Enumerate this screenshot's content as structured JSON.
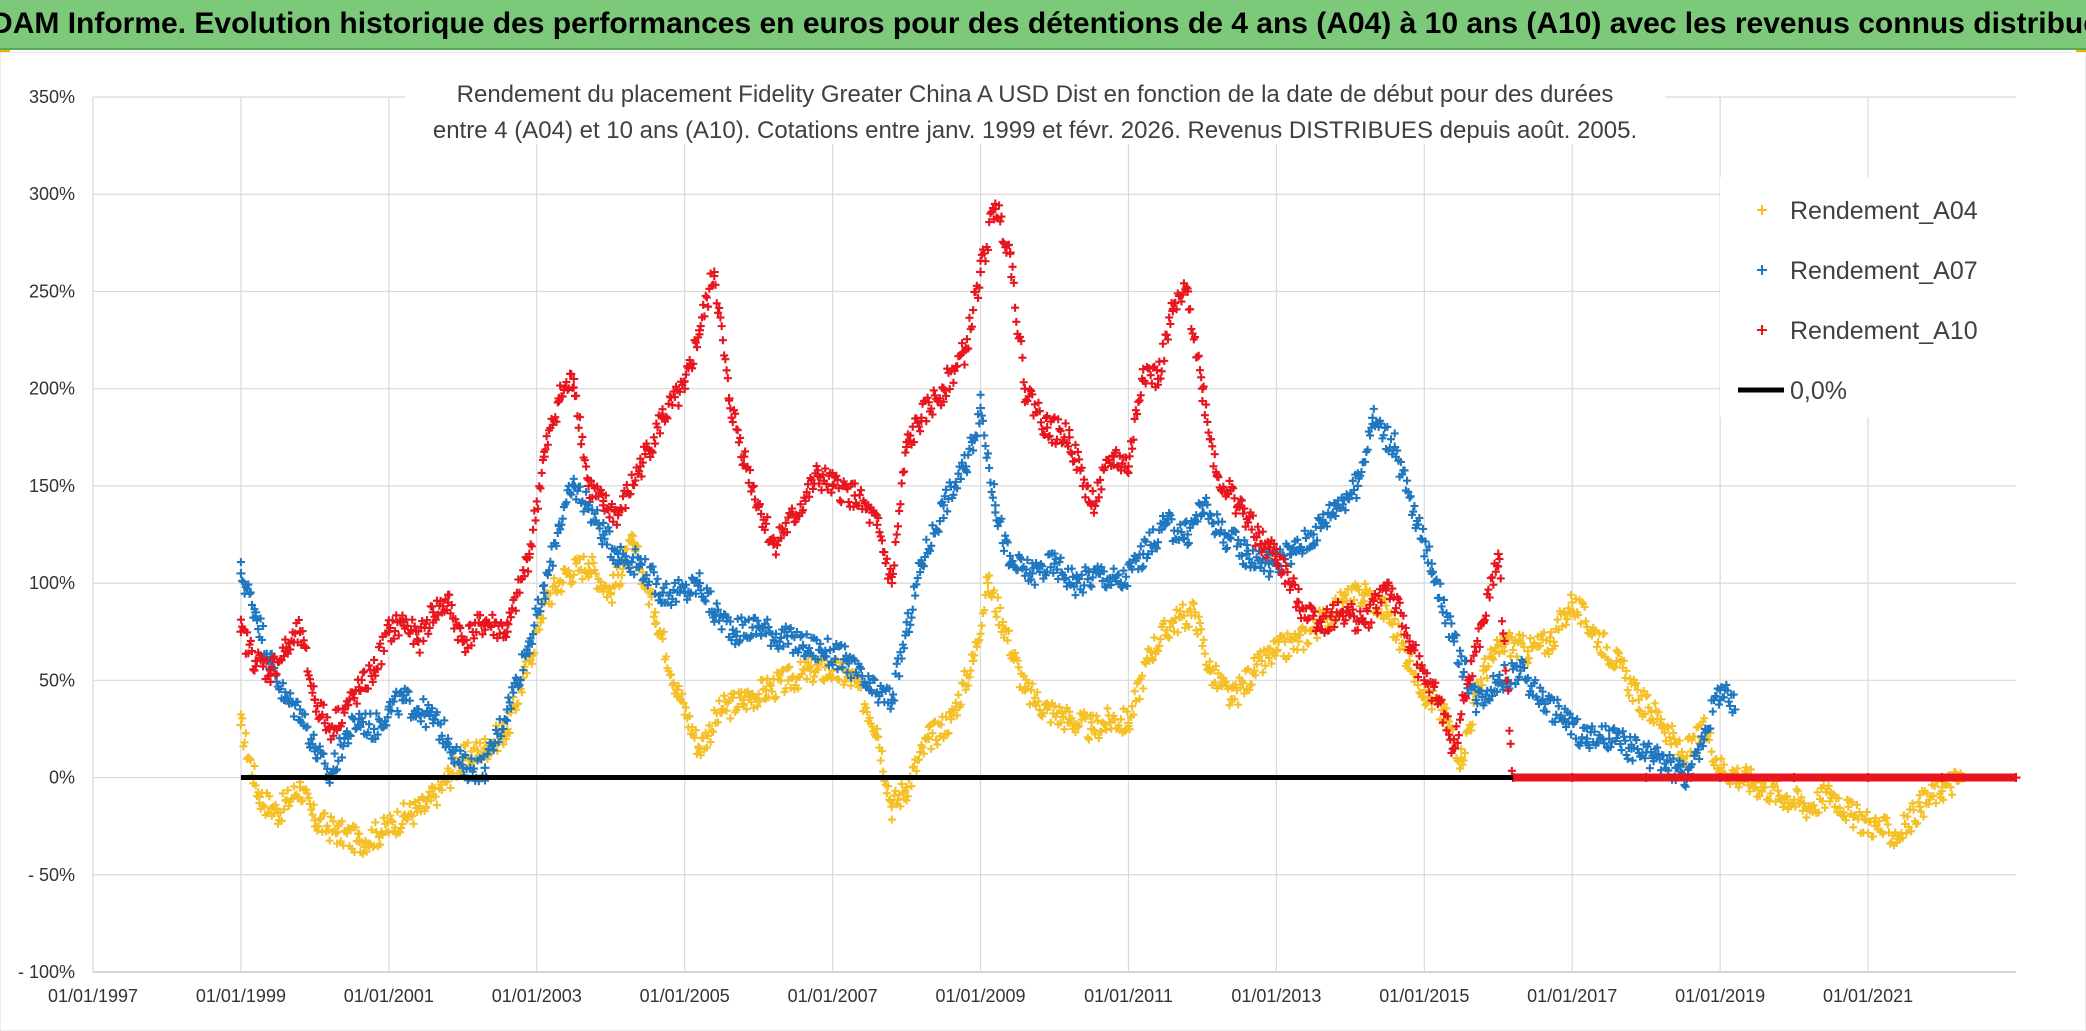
{
  "banner": {
    "title": "ADAM Informe. Evolution historique des performances en euros pour des détentions de 4 ans (A04) à 10 ans (A10) avec les revenus connus distribués"
  },
  "chart_data": {
    "type": "scatter",
    "title_line1": "Rendement du placement Fidelity Greater China A USD Dist en fonction de la date de début pour des durées",
    "title_line2": "entre 4 (A04) et 10 ans (A10). Cotations entre janv. 1999 et févr. 2026. Revenus DISTRIBUES depuis août. 2005.",
    "ylim": [
      -100,
      350
    ],
    "xlim": [
      1997.0,
      2023.0
    ],
    "grid": true,
    "legend_position": "top-right",
    "y_tick_labels": [
      "- 100%",
      "- 50%",
      "0%",
      "50%",
      "100%",
      "150%",
      "200%",
      "250%",
      "300%",
      "350%"
    ],
    "y_tick_values": [
      -100,
      -50,
      0,
      50,
      100,
      150,
      200,
      250,
      300,
      350
    ],
    "x_tick_labels": [
      "01/01/1997",
      "01/01/1999",
      "01/01/2001",
      "01/01/2003",
      "01/01/2005",
      "01/01/2007",
      "01/01/2009",
      "01/01/2011",
      "01/01/2013",
      "01/01/2015",
      "01/01/2017",
      "01/01/2019",
      "01/01/2021"
    ],
    "x_tick_values": [
      1997,
      1999,
      2001,
      2003,
      2005,
      2007,
      2009,
      2011,
      2013,
      2015,
      2017,
      2019,
      2021
    ],
    "series": [
      {
        "name": "Rendement_A04",
        "color": "#f5c026",
        "marker": "plus",
        "points": [
          [
            1999.0,
            27
          ],
          [
            1999.25,
            -10
          ],
          [
            1999.5,
            -18
          ],
          [
            1999.8,
            -5
          ],
          [
            2000.0,
            -22
          ],
          [
            2000.3,
            -28
          ],
          [
            2000.6,
            -33
          ],
          [
            2000.9,
            -28
          ],
          [
            2001.2,
            -20
          ],
          [
            2001.5,
            -15
          ],
          [
            2001.8,
            0
          ],
          [
            2002.0,
            10
          ],
          [
            2002.3,
            15
          ],
          [
            2002.6,
            25
          ],
          [
            2002.9,
            60
          ],
          [
            2003.1,
            90
          ],
          [
            2003.4,
            105
          ],
          [
            2003.7,
            110
          ],
          [
            2004.0,
            95
          ],
          [
            2004.3,
            120
          ],
          [
            2004.6,
            85
          ],
          [
            2004.9,
            45
          ],
          [
            2005.2,
            15
          ],
          [
            2005.5,
            35
          ],
          [
            2005.8,
            40
          ],
          [
            2006.1,
            45
          ],
          [
            2006.4,
            50
          ],
          [
            2006.7,
            55
          ],
          [
            2007.0,
            55
          ],
          [
            2007.3,
            50
          ],
          [
            2007.6,
            25
          ],
          [
            2007.8,
            -15
          ],
          [
            2008.0,
            -5
          ],
          [
            2008.3,
            20
          ],
          [
            2008.6,
            30
          ],
          [
            2008.9,
            60
          ],
          [
            2009.1,
            100
          ],
          [
            2009.3,
            80
          ],
          [
            2009.6,
            45
          ],
          [
            2009.9,
            35
          ],
          [
            2010.2,
            30
          ],
          [
            2010.5,
            25
          ],
          [
            2010.8,
            30
          ],
          [
            2011.0,
            28
          ],
          [
            2011.3,
            65
          ],
          [
            2011.6,
            80
          ],
          [
            2011.9,
            85
          ],
          [
            2012.1,
            55
          ],
          [
            2012.4,
            40
          ],
          [
            2012.7,
            55
          ],
          [
            2013.0,
            65
          ],
          [
            2013.3,
            70
          ],
          [
            2013.6,
            80
          ],
          [
            2013.9,
            90
          ],
          [
            2014.2,
            95
          ],
          [
            2014.5,
            85
          ],
          [
            2014.8,
            60
          ],
          [
            2015.0,
            45
          ],
          [
            2015.3,
            30
          ],
          [
            2015.5,
            10
          ],
          [
            2015.8,
            55
          ],
          [
            2016.1,
            70
          ],
          [
            2016.4,
            65
          ],
          [
            2016.7,
            70
          ],
          [
            2017.0,
            90
          ],
          [
            2017.3,
            75
          ],
          [
            2017.6,
            60
          ],
          [
            2017.9,
            40
          ],
          [
            2018.2,
            30
          ],
          [
            2018.5,
            10
          ],
          [
            2018.8,
            25
          ],
          [
            2019.0,
            5
          ],
          [
            2019.3,
            0
          ],
          [
            2019.6,
            -5
          ],
          [
            2019.9,
            -10
          ],
          [
            2020.2,
            -15
          ],
          [
            2020.5,
            -8
          ],
          [
            2020.8,
            -20
          ],
          [
            2021.1,
            -25
          ],
          [
            2021.4,
            -30
          ],
          [
            2021.7,
            -15
          ],
          [
            2022.0,
            -5
          ],
          [
            2022.3,
            0
          ]
        ]
      },
      {
        "name": "Rendement_A07",
        "color": "#1f77c0",
        "marker": "plus",
        "points": [
          [
            1999.0,
            105
          ],
          [
            1999.2,
            85
          ],
          [
            1999.4,
            60
          ],
          [
            1999.6,
            40
          ],
          [
            1999.8,
            35
          ],
          [
            2000.0,
            15
          ],
          [
            2000.2,
            0
          ],
          [
            2000.4,
            20
          ],
          [
            2000.6,
            30
          ],
          [
            2000.8,
            25
          ],
          [
            2001.0,
            35
          ],
          [
            2001.2,
            40
          ],
          [
            2001.4,
            35
          ],
          [
            2001.6,
            30
          ],
          [
            2001.8,
            20
          ],
          [
            2002.0,
            5
          ],
          [
            2002.3,
            5
          ],
          [
            2002.6,
            35
          ],
          [
            2002.9,
            70
          ],
          [
            2003.1,
            95
          ],
          [
            2003.3,
            130
          ],
          [
            2003.5,
            150
          ],
          [
            2003.7,
            140
          ],
          [
            2003.9,
            125
          ],
          [
            2004.1,
            115
          ],
          [
            2004.4,
            110
          ],
          [
            2004.7,
            95
          ],
          [
            2005.0,
            95
          ],
          [
            2005.2,
            100
          ],
          [
            2005.4,
            85
          ],
          [
            2005.7,
            75
          ],
          [
            2006.0,
            78
          ],
          [
            2006.3,
            72
          ],
          [
            2006.6,
            68
          ],
          [
            2006.9,
            65
          ],
          [
            2007.2,
            60
          ],
          [
            2007.5,
            45
          ],
          [
            2007.8,
            40
          ],
          [
            2008.0,
            75
          ],
          [
            2008.2,
            110
          ],
          [
            2008.5,
            140
          ],
          [
            2008.8,
            160
          ],
          [
            2009.0,
            190
          ],
          [
            2009.2,
            140
          ],
          [
            2009.4,
            110
          ],
          [
            2009.7,
            105
          ],
          [
            2010.0,
            110
          ],
          [
            2010.3,
            100
          ],
          [
            2010.6,
            105
          ],
          [
            2010.9,
            100
          ],
          [
            2011.2,
            115
          ],
          [
            2011.5,
            130
          ],
          [
            2011.8,
            125
          ],
          [
            2012.0,
            140
          ],
          [
            2012.3,
            125
          ],
          [
            2012.6,
            115
          ],
          [
            2012.9,
            110
          ],
          [
            2013.2,
            115
          ],
          [
            2013.5,
            125
          ],
          [
            2013.8,
            140
          ],
          [
            2014.1,
            150
          ],
          [
            2014.3,
            185
          ],
          [
            2014.6,
            170
          ],
          [
            2014.9,
            130
          ],
          [
            2015.1,
            110
          ],
          [
            2015.4,
            70
          ],
          [
            2015.7,
            40
          ],
          [
            2016.0,
            50
          ],
          [
            2016.3,
            55
          ],
          [
            2016.6,
            40
          ],
          [
            2016.9,
            30
          ],
          [
            2017.2,
            20
          ],
          [
            2017.5,
            20
          ],
          [
            2017.8,
            15
          ],
          [
            2018.1,
            10
          ],
          [
            2018.4,
            5
          ],
          [
            2018.6,
            0
          ],
          [
            2018.8,
            25
          ],
          [
            2019.0,
            45
          ],
          [
            2019.2,
            35
          ]
        ]
      },
      {
        "name": "Rendement_A10",
        "color": "#e8141e",
        "marker": "plus",
        "points": [
          [
            1999.0,
            75
          ],
          [
            1999.2,
            60
          ],
          [
            1999.4,
            55
          ],
          [
            1999.6,
            65
          ],
          [
            1999.8,
            75
          ],
          [
            2000.0,
            40
          ],
          [
            2000.2,
            25
          ],
          [
            2000.4,
            35
          ],
          [
            2000.6,
            45
          ],
          [
            2000.8,
            55
          ],
          [
            2001.0,
            75
          ],
          [
            2001.2,
            80
          ],
          [
            2001.4,
            70
          ],
          [
            2001.6,
            85
          ],
          [
            2001.8,
            90
          ],
          [
            2002.0,
            70
          ],
          [
            2002.3,
            80
          ],
          [
            2002.6,
            75
          ],
          [
            2002.9,
            115
          ],
          [
            2003.1,
            165
          ],
          [
            2003.3,
            195
          ],
          [
            2003.5,
            205
          ],
          [
            2003.7,
            150
          ],
          [
            2003.9,
            140
          ],
          [
            2004.1,
            135
          ],
          [
            2004.4,
            160
          ],
          [
            2004.7,
            185
          ],
          [
            2005.0,
            200
          ],
          [
            2005.2,
            230
          ],
          [
            2005.4,
            260
          ],
          [
            2005.6,
            195
          ],
          [
            2005.8,
            165
          ],
          [
            2006.0,
            140
          ],
          [
            2006.2,
            120
          ],
          [
            2006.5,
            135
          ],
          [
            2006.8,
            155
          ],
          [
            2007.0,
            150
          ],
          [
            2007.3,
            145
          ],
          [
            2007.6,
            130
          ],
          [
            2007.8,
            100
          ],
          [
            2008.0,
            170
          ],
          [
            2008.2,
            185
          ],
          [
            2008.5,
            200
          ],
          [
            2008.8,
            220
          ],
          [
            2009.0,
            260
          ],
          [
            2009.2,
            295
          ],
          [
            2009.4,
            270
          ],
          [
            2009.6,
            200
          ],
          [
            2009.9,
            180
          ],
          [
            2010.2,
            175
          ],
          [
            2010.5,
            140
          ],
          [
            2010.8,
            165
          ],
          [
            2011.0,
            160
          ],
          [
            2011.2,
            210
          ],
          [
            2011.4,
            205
          ],
          [
            2011.6,
            240
          ],
          [
            2011.8,
            250
          ],
          [
            2012.0,
            200
          ],
          [
            2012.2,
            155
          ],
          [
            2012.5,
            140
          ],
          [
            2012.8,
            120
          ],
          [
            2013.0,
            115
          ],
          [
            2013.3,
            90
          ],
          [
            2013.6,
            80
          ],
          [
            2013.9,
            85
          ],
          [
            2014.2,
            80
          ],
          [
            2014.5,
            100
          ],
          [
            2014.8,
            70
          ],
          [
            2015.0,
            50
          ],
          [
            2015.2,
            40
          ],
          [
            2015.4,
            15
          ],
          [
            2015.6,
            50
          ],
          [
            2015.8,
            80
          ],
          [
            2016.0,
            115
          ],
          [
            2016.2,
            0
          ],
          [
            2017.0,
            0
          ],
          [
            2018.0,
            0
          ],
          [
            2019.0,
            0
          ],
          [
            2020.0,
            0
          ],
          [
            2021.0,
            0
          ],
          [
            2022.0,
            0
          ],
          [
            2023.0,
            0
          ]
        ]
      },
      {
        "name": "0,0%",
        "color": "#000000",
        "marker": "line",
        "points": [
          [
            1999.0,
            0
          ],
          [
            2016.2,
            0
          ]
        ]
      }
    ]
  }
}
